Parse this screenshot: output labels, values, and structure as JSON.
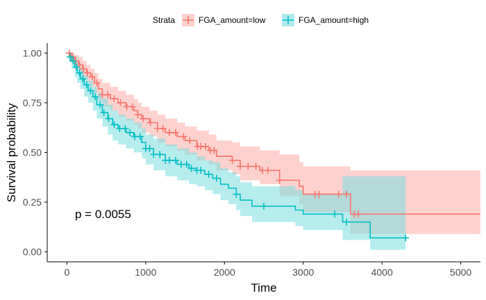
{
  "chart_data": {
    "type": "line",
    "subtype": "kaplan-meier survival curve",
    "xlabel": "Time",
    "ylabel": "Survival probability",
    "xlim": [
      -250,
      5250
    ],
    "ylim": [
      -0.05,
      1.05
    ],
    "x_ticks": [
      0,
      1000,
      2000,
      3000,
      4000,
      5000
    ],
    "x_tick_labels": [
      "0",
      "1000",
      "2000",
      "3000",
      "4000",
      "5000"
    ],
    "y_ticks": [
      0.0,
      0.25,
      0.5,
      0.75,
      1.0
    ],
    "y_tick_labels": [
      "0.00",
      "0.25",
      "0.50",
      "0.75",
      "1.00"
    ],
    "grid": false,
    "legend": {
      "title": "Strata",
      "position": "top",
      "entries": [
        "FGA_amount=low",
        "FGA_amount=high"
      ]
    },
    "annotation": {
      "text": "p = 0.0055",
      "x": 120,
      "y": 0.19
    },
    "series": [
      {
        "name": "FGA_amount=low",
        "color": "#F8766D",
        "band_color": "#FBB4AE",
        "x": [
          0,
          50,
          100,
          150,
          200,
          250,
          300,
          350,
          400,
          450,
          550,
          650,
          750,
          850,
          900,
          950,
          1050,
          1150,
          1250,
          1400,
          1500,
          1650,
          1800,
          1900,
          2100,
          2200,
          2450,
          2700,
          2950,
          3000,
          3600,
          4000,
          4500,
          5250
        ],
        "y": [
          1.0,
          0.98,
          0.96,
          0.94,
          0.92,
          0.9,
          0.88,
          0.85,
          0.82,
          0.79,
          0.77,
          0.75,
          0.73,
          0.71,
          0.69,
          0.67,
          0.65,
          0.62,
          0.6,
          0.58,
          0.56,
          0.53,
          0.51,
          0.48,
          0.46,
          0.43,
          0.41,
          0.36,
          0.33,
          0.29,
          0.19,
          0.19,
          0.19,
          0.19
        ],
        "upper": [
          1.0,
          1.0,
          0.99,
          0.98,
          0.96,
          0.94,
          0.92,
          0.9,
          0.87,
          0.85,
          0.83,
          0.81,
          0.79,
          0.77,
          0.75,
          0.73,
          0.71,
          0.69,
          0.67,
          0.65,
          0.63,
          0.61,
          0.59,
          0.56,
          0.55,
          0.53,
          0.51,
          0.49,
          0.45,
          0.43,
          0.41,
          0.41,
          0.41,
          0.41
        ],
        "lower": [
          1.0,
          0.95,
          0.92,
          0.89,
          0.87,
          0.85,
          0.83,
          0.8,
          0.76,
          0.73,
          0.71,
          0.68,
          0.66,
          0.64,
          0.62,
          0.6,
          0.58,
          0.55,
          0.53,
          0.51,
          0.49,
          0.46,
          0.44,
          0.41,
          0.39,
          0.36,
          0.34,
          0.28,
          0.24,
          0.2,
          0.09,
          0.09,
          0.09,
          0.09
        ],
        "censor_x": [
          30,
          70,
          110,
          160,
          210,
          260,
          320,
          380,
          450,
          520,
          600,
          680,
          760,
          830,
          900,
          970,
          1060,
          1150,
          1220,
          1300,
          1380,
          1480,
          1560,
          1660,
          1700,
          1760,
          1820,
          1870,
          2100,
          2200,
          2300,
          2400,
          2480,
          2550,
          2700,
          3150,
          3200,
          3450,
          3550,
          3650,
          3700
        ]
      },
      {
        "name": "FGA_amount=high",
        "color": "#00BFC4",
        "band_color": "#7ADDE0",
        "x": [
          0,
          30,
          60,
          100,
          130,
          170,
          220,
          270,
          330,
          380,
          450,
          520,
          580,
          650,
          750,
          850,
          950,
          1000,
          1100,
          1250,
          1400,
          1550,
          1650,
          1750,
          1850,
          1950,
          2050,
          2150,
          2200,
          2350,
          2900,
          3000,
          3500,
          3850,
          4300
        ],
        "y": [
          1.0,
          0.98,
          0.96,
          0.93,
          0.9,
          0.87,
          0.84,
          0.81,
          0.78,
          0.74,
          0.7,
          0.67,
          0.64,
          0.62,
          0.6,
          0.58,
          0.55,
          0.52,
          0.49,
          0.46,
          0.44,
          0.42,
          0.41,
          0.39,
          0.37,
          0.34,
          0.32,
          0.29,
          0.26,
          0.23,
          0.21,
          0.19,
          0.15,
          0.07,
          0.07
        ],
        "upper": [
          1.0,
          1.0,
          0.99,
          0.97,
          0.95,
          0.92,
          0.89,
          0.86,
          0.83,
          0.8,
          0.77,
          0.74,
          0.71,
          0.69,
          0.67,
          0.65,
          0.62,
          0.59,
          0.57,
          0.54,
          0.52,
          0.5,
          0.48,
          0.46,
          0.45,
          0.42,
          0.4,
          0.38,
          0.35,
          0.33,
          0.31,
          0.29,
          0.38,
          0.38,
          0.38
        ],
        "lower": [
          1.0,
          0.96,
          0.92,
          0.88,
          0.85,
          0.82,
          0.78,
          0.75,
          0.71,
          0.67,
          0.63,
          0.59,
          0.56,
          0.54,
          0.52,
          0.5,
          0.47,
          0.44,
          0.41,
          0.38,
          0.36,
          0.34,
          0.33,
          0.31,
          0.29,
          0.26,
          0.24,
          0.21,
          0.18,
          0.15,
          0.13,
          0.11,
          0.06,
          0.01,
          0.01
        ],
        "censor_x": [
          40,
          80,
          120,
          160,
          200,
          250,
          300,
          360,
          420,
          470,
          530,
          600,
          670,
          740,
          800,
          860,
          930,
          1000,
          1050,
          1100,
          1180,
          1250,
          1300,
          1380,
          1450,
          1520,
          1580,
          1650,
          1700,
          1800,
          1900,
          2150,
          2500,
          3400,
          3550,
          4300
        ]
      }
    ]
  }
}
